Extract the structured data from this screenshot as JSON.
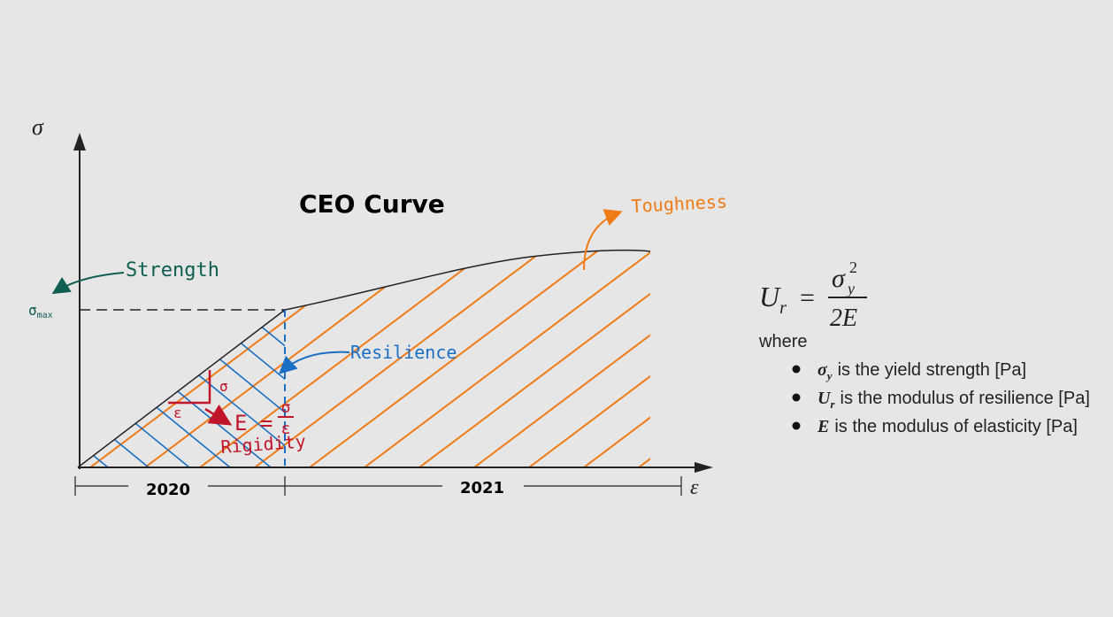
{
  "title": "CEO Curve",
  "axes": {
    "y": "σ",
    "x": "ε"
  },
  "annotations": {
    "strength": "Strength",
    "sigma_max": "σ",
    "sigma_max_sub": "max",
    "resilience": "Resilience",
    "toughness": "Toughness",
    "rigidity": "Rigidity",
    "slope_rise": "σ",
    "slope_run": "ε",
    "modulus_lhs": "E =",
    "modulus_num": "σ",
    "modulus_den": "ε"
  },
  "periods": [
    "2020",
    "2021"
  ],
  "formula": {
    "lhs": "U",
    "lhs_sub": "r",
    "equals": "=",
    "numerator": "σ",
    "num_sub": "y",
    "num_sup": "2",
    "denominator": "2E"
  },
  "legend": {
    "intro": "where",
    "items": [
      {
        "symbol": "σ",
        "sub": "y",
        "text": "is the yield strength [Pa]"
      },
      {
        "symbol": "U",
        "sub": "r",
        "text": "is the modulus of resilience [Pa]"
      },
      {
        "symbol": "E",
        "sub": "",
        "text": "is the modulus of elasticity [Pa]"
      }
    ]
  }
}
